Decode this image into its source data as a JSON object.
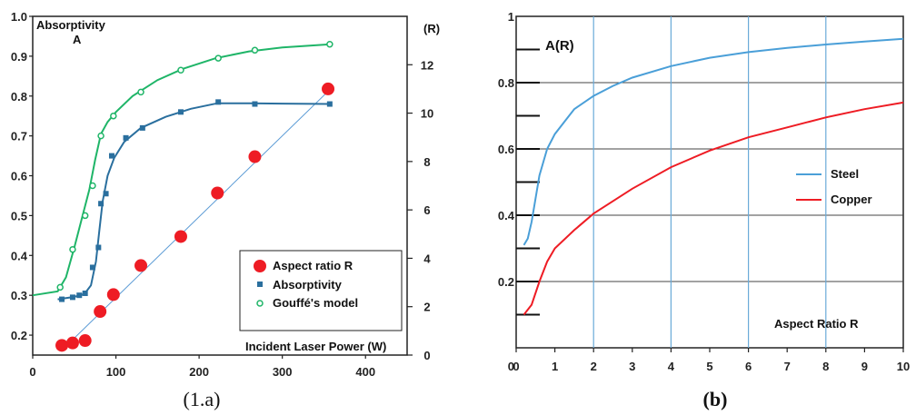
{
  "chart_data": [
    {
      "type": "line",
      "caption": "(1.a)",
      "annotation": "Absorptivity\nA",
      "xlabel": "Incident Laser Power (W)",
      "y2label": "(R)",
      "xlim": [
        0,
        450
      ],
      "ylim": [
        0.15,
        1.0
      ],
      "y2lim": [
        0,
        14
      ],
      "x_ticks": [
        0,
        100,
        200,
        300,
        400
      ],
      "y_ticks": [
        0.2,
        0.3,
        0.4,
        0.5,
        0.6,
        0.7,
        0.8,
        0.9,
        1.0
      ],
      "y2_ticks": [
        0,
        2,
        4,
        6,
        8,
        10,
        12
      ],
      "legend_position": "bottom-right",
      "legend": [
        "Aspect ratio R",
        "Absorptivity",
        "Gouffé's model"
      ],
      "colors": {
        "aspect": "#ee1c24",
        "absorptivity": "#2a6f9e",
        "gouffe": "#1fb568",
        "trend": "#5b9bd5"
      },
      "series": [
        {
          "name": "Aspect ratio R",
          "axis": "right",
          "marker": "circle",
          "x": [
            35,
            48,
            63,
            81,
            97,
            130,
            178,
            222,
            267,
            355
          ],
          "y": [
            0.4,
            0.5,
            0.6,
            1.8,
            2.5,
            3.7,
            4.9,
            6.7,
            8.2,
            11.0
          ]
        },
        {
          "name": "Absorptivity",
          "axis": "left",
          "marker": "square",
          "x": [
            35,
            48,
            56,
            63,
            72,
            79,
            82,
            88,
            95,
            112,
            132,
            178,
            223,
            267,
            357
          ],
          "y": [
            0.29,
            0.295,
            0.3,
            0.305,
            0.37,
            0.42,
            0.53,
            0.555,
            0.65,
            0.695,
            0.72,
            0.76,
            0.785,
            0.78,
            0.78
          ]
        },
        {
          "name": "Gouffé's model",
          "axis": "left",
          "marker": "open-circle",
          "x": [
            33,
            48,
            63,
            72,
            82,
            97,
            130,
            178,
            223,
            267,
            357
          ],
          "y": [
            0.32,
            0.415,
            0.5,
            0.575,
            0.7,
            0.75,
            0.81,
            0.865,
            0.895,
            0.915,
            0.93
          ]
        }
      ],
      "trend_line": {
        "x": [
          35,
          358
        ],
        "y": [
          0.2,
          11.0
        ]
      },
      "fit_curves": {
        "Absorptivity": {
          "x": [
            30,
            50,
            62,
            70,
            76,
            80,
            84,
            90,
            98,
            110,
            130,
            160,
            190,
            222,
            260,
            300,
            358
          ],
          "y": [
            0.29,
            0.296,
            0.303,
            0.325,
            0.385,
            0.46,
            0.535,
            0.6,
            0.645,
            0.685,
            0.72,
            0.748,
            0.768,
            0.782,
            0.782,
            0.781,
            0.78
          ]
        },
        "Gouffé's model": {
          "x": [
            0,
            30,
            40,
            50,
            60,
            68,
            75,
            82,
            90,
            100,
            120,
            150,
            180,
            220,
            260,
            300,
            358
          ],
          "y": [
            0.3,
            0.31,
            0.345,
            0.42,
            0.5,
            0.565,
            0.64,
            0.705,
            0.735,
            0.76,
            0.8,
            0.84,
            0.868,
            0.895,
            0.912,
            0.922,
            0.93
          ]
        }
      }
    },
    {
      "type": "line",
      "caption": "(b)",
      "ylabel": "A(R)",
      "xlabel": "Aspect  Ratio R",
      "xlim": [
        0,
        10
      ],
      "ylim": [
        0,
        1
      ],
      "x_ticks": [
        0,
        1,
        2,
        3,
        4,
        5,
        6,
        7,
        8,
        9,
        10
      ],
      "y_ticks": [
        0.2,
        0.4,
        0.6,
        0.8,
        1
      ],
      "grid": "horizontal at 0.2, 0.4, 0.6, 0.8; vertical at 2, 4, 6, 8",
      "legend_position": "center-right",
      "legend": [
        "Steel",
        "Copper"
      ],
      "colors": {
        "steel": "#4a9fd8",
        "copper": "#ee1c24",
        "hgrid": "#444444",
        "vgrid": "#6aaad8"
      },
      "series": [
        {
          "name": "Steel",
          "x": [
            0.2,
            0.3,
            0.4,
            0.5,
            0.6,
            0.8,
            1.0,
            1.5,
            2.0,
            2.5,
            3.0,
            4.0,
            5.0,
            6.0,
            7.0,
            8.0,
            9.0,
            10.0
          ],
          "y": [
            0.31,
            0.33,
            0.38,
            0.45,
            0.52,
            0.6,
            0.645,
            0.72,
            0.76,
            0.79,
            0.815,
            0.85,
            0.875,
            0.892,
            0.905,
            0.915,
            0.924,
            0.932
          ]
        },
        {
          "name": "Copper",
          "x": [
            0.2,
            0.4,
            0.6,
            0.8,
            1.0,
            1.5,
            2.0,
            3.0,
            4.0,
            5.0,
            6.0,
            7.0,
            8.0,
            9.0,
            10.0
          ],
          "y": [
            0.1,
            0.13,
            0.2,
            0.26,
            0.3,
            0.355,
            0.405,
            0.48,
            0.545,
            0.595,
            0.635,
            0.665,
            0.695,
            0.72,
            0.74
          ]
        }
      ]
    }
  ]
}
